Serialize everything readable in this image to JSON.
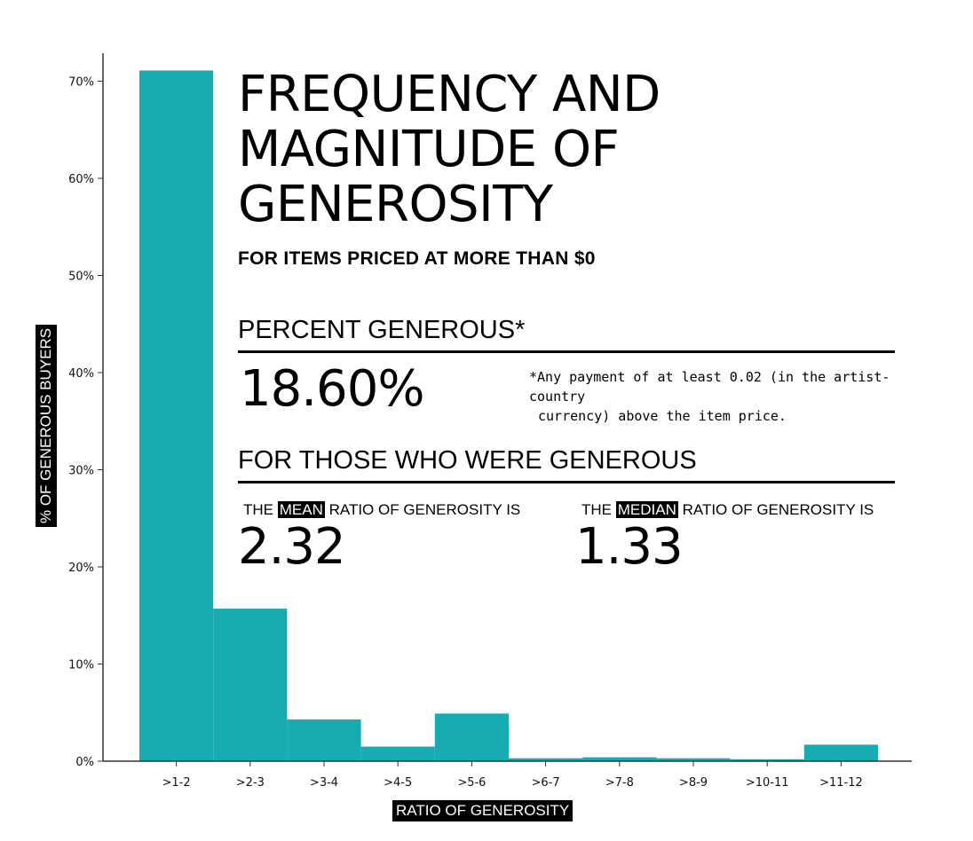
{
  "chart_data": {
    "type": "bar",
    "title": "FREQUENCY AND MAGNITUDE OF GENEROSITY",
    "subtitle": "FOR ITEMS PRICED AT MORE THAN $0",
    "xlabel": "RATIO OF GENEROSITY",
    "ylabel": "% OF GENEROUS BUYERS",
    "categories": [
      ">1-2",
      ">2-3",
      ">3-4",
      ">4-5",
      ">5-6",
      ">6-7",
      ">7-8",
      ">8-9",
      ">10-11",
      ">11-12"
    ],
    "values": [
      71.1,
      15.7,
      4.3,
      1.5,
      4.9,
      0.3,
      0.4,
      0.3,
      0.2,
      1.7
    ],
    "yticks": [
      "0%",
      "10%",
      "20%",
      "30%",
      "40%",
      "50%",
      "60%",
      "70%"
    ],
    "ytick_values": [
      0,
      10,
      20,
      30,
      40,
      50,
      60,
      70
    ],
    "ylim": [
      0,
      73
    ],
    "bar_color": "#17acb2",
    "grid": false
  },
  "title_lines": [
    "FREQUENCY AND",
    "MAGNITUDE OF",
    "GENEROSITY"
  ],
  "percent_section": {
    "heading": "PERCENT GENEROUS*",
    "value": "18.60%",
    "footnote_line1": "*Any payment of at least 0.02 (in the artist-country",
    "footnote_line2": "currency) above the item price."
  },
  "generous_section": {
    "heading": "FOR THOSE WHO WERE GENEROUS",
    "mean": {
      "prefix": "THE",
      "highlight": "MEAN",
      "suffix": "RATIO OF GENEROSITY IS",
      "value": "2.32"
    },
    "median": {
      "prefix": "THE",
      "highlight": "MEDIAN",
      "suffix": "RATIO OF GENEROSITY IS",
      "value": "1.33"
    }
  }
}
